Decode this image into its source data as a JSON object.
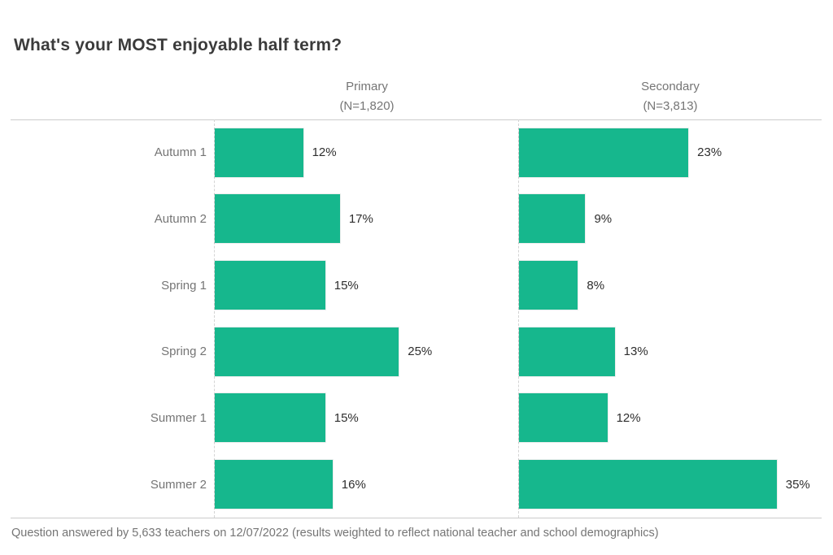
{
  "title": "What's your MOST enjoyable half term?",
  "footer": "Question answered by 5,633 teachers on 12/07/2022 (results weighted to reflect national teacher and school demographics)",
  "colors": {
    "bar": "#16b78d",
    "title_text": "#3b3b3b",
    "muted_text": "#757575",
    "value_text": "#2e2e2e",
    "rule_line": "#cccccc"
  },
  "chart_data": {
    "type": "bar",
    "orientation": "horizontal",
    "title": "What's your MOST enjoyable half term?",
    "categories": [
      "Autumn 1",
      "Autumn 2",
      "Spring 1",
      "Spring 2",
      "Summer 1",
      "Summer 2"
    ],
    "series": [
      {
        "name": "Primary",
        "n_label": "(N=1,820)",
        "values": [
          12,
          17,
          15,
          25,
          15,
          16
        ]
      },
      {
        "name": "Secondary",
        "n_label": "(N=3,813)",
        "values": [
          23,
          9,
          8,
          13,
          12,
          35
        ]
      }
    ],
    "value_suffix": "%",
    "xlim": [
      0,
      40
    ],
    "grid": false,
    "legend_position": "column-headers"
  }
}
